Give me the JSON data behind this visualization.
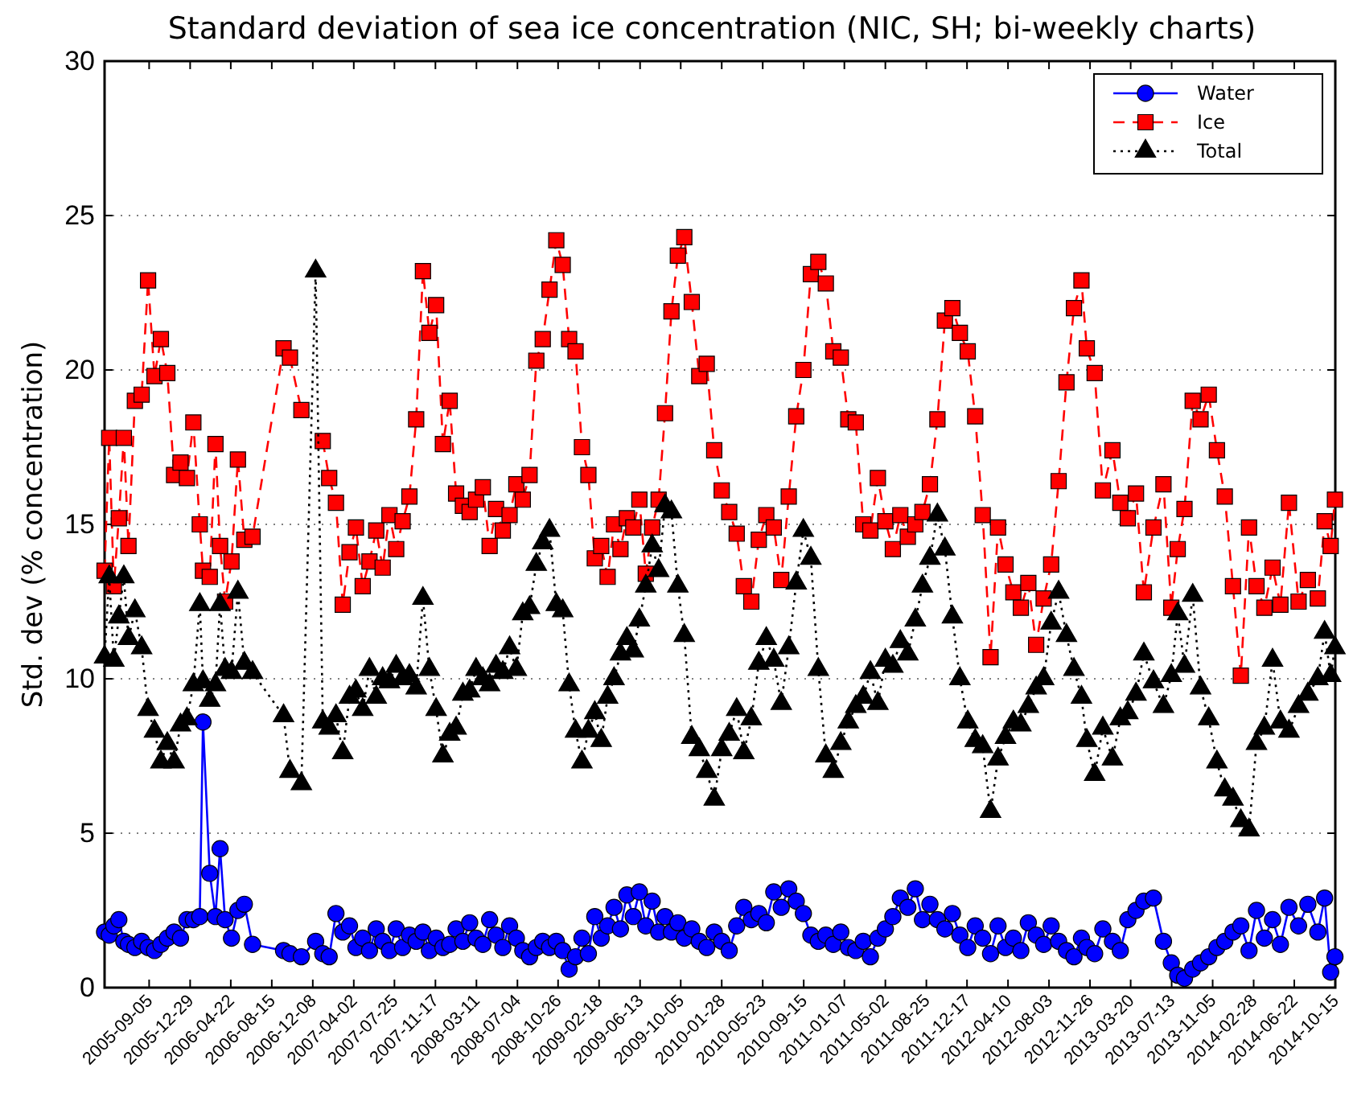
{
  "chart_data": {
    "type": "line",
    "title": "Standard deviation of sea ice concentration (NIC, SH; bi-weekly charts)",
    "ylabel": "Std. dev (% concentration)",
    "x": [
      "2005-05-03",
      "2005-05-16",
      "2005-05-29",
      "2005-06-12",
      "2005-06-26",
      "2005-07-09",
      "2005-07-27",
      "2005-08-15",
      "2005-09-02",
      "2005-09-20",
      "2005-10-08",
      "2005-10-26",
      "2005-11-14",
      "2005-12-02",
      "2005-12-20",
      "2006-01-07",
      "2006-01-25",
      "2006-02-03",
      "2006-02-22",
      "2006-03-10",
      "2006-03-23",
      "2006-04-06",
      "2006-04-24",
      "2006-05-12",
      "2006-05-30",
      "2006-06-22",
      "2006-09-17",
      "2006-10-05",
      "2006-11-06",
      "2006-12-16",
      "2007-01-05",
      "2007-01-23",
      "2007-02-11",
      "2007-03-02",
      "2007-03-21",
      "2007-04-08",
      "2007-04-27",
      "2007-05-16",
      "2007-06-04",
      "2007-06-22",
      "2007-07-11",
      "2007-07-30",
      "2007-08-17",
      "2007-09-05",
      "2007-09-24",
      "2007-10-13",
      "2007-10-31",
      "2007-11-19",
      "2007-12-08",
      "2007-12-27",
      "2008-01-14",
      "2008-02-02",
      "2008-02-21",
      "2008-03-10",
      "2008-03-29",
      "2008-04-17",
      "2008-05-05",
      "2008-05-24",
      "2008-06-12",
      "2008-07-01",
      "2008-07-19",
      "2008-08-07",
      "2008-08-26",
      "2008-09-13",
      "2008-10-02",
      "2008-10-21",
      "2008-11-08",
      "2008-11-26",
      "2008-12-14",
      "2009-01-01",
      "2009-01-19",
      "2009-02-06",
      "2009-02-24",
      "2009-03-14",
      "2009-04-01",
      "2009-04-19",
      "2009-05-07",
      "2009-05-25",
      "2009-06-11",
      "2009-06-29",
      "2009-07-17",
      "2009-08-04",
      "2009-08-22",
      "2009-09-09",
      "2009-09-27",
      "2009-10-15",
      "2009-11-05",
      "2009-11-26",
      "2009-12-17",
      "2010-01-07",
      "2010-01-28",
      "2010-02-18",
      "2010-03-11",
      "2010-03-31",
      "2010-04-21",
      "2010-05-12",
      "2010-06-02",
      "2010-06-23",
      "2010-07-14",
      "2010-08-04",
      "2010-08-25",
      "2010-09-14",
      "2010-10-05",
      "2010-10-26",
      "2010-11-16",
      "2010-12-07",
      "2010-12-28",
      "2011-01-18",
      "2011-02-08",
      "2011-03-01",
      "2011-03-21",
      "2011-04-11",
      "2011-05-02",
      "2011-05-23",
      "2011-06-13",
      "2011-07-04",
      "2011-07-25",
      "2011-08-14",
      "2011-09-04",
      "2011-09-25",
      "2011-10-16",
      "2011-11-06",
      "2011-11-27",
      "2011-12-19",
      "2012-01-09",
      "2012-01-30",
      "2012-02-21",
      "2012-03-13",
      "2012-04-03",
      "2012-04-25",
      "2012-05-16",
      "2012-06-06",
      "2012-06-28",
      "2012-07-19",
      "2012-08-09",
      "2012-08-30",
      "2012-09-21",
      "2012-10-12",
      "2012-11-02",
      "2012-11-17",
      "2012-12-09",
      "2013-01-01",
      "2013-01-28",
      "2013-02-19",
      "2013-03-12",
      "2013-04-04",
      "2013-04-26",
      "2013-05-23",
      "2013-06-20",
      "2013-07-12",
      "2013-07-30",
      "2013-08-18",
      "2013-09-10",
      "2013-10-02",
      "2013-10-25",
      "2013-11-17",
      "2013-12-09",
      "2014-01-01",
      "2014-01-23",
      "2014-02-15",
      "2014-03-08",
      "2014-03-30",
      "2014-04-22",
      "2014-05-14",
      "2014-06-07",
      "2014-07-04",
      "2014-07-30",
      "2014-08-27",
      "2014-09-15",
      "2014-10-02",
      "2014-10-14"
    ],
    "series": [
      {
        "name": "Water",
        "color": "#0000ff",
        "marker": "circle",
        "line_style": "solid",
        "values": [
          1.8,
          1.7,
          2.0,
          2.2,
          1.5,
          1.4,
          1.3,
          1.5,
          1.3,
          1.2,
          1.4,
          1.6,
          1.8,
          1.6,
          2.2,
          2.2,
          2.3,
          8.6,
          3.7,
          2.3,
          4.5,
          2.2,
          1.6,
          2.5,
          2.7,
          1.4,
          1.2,
          1.1,
          1.0,
          1.5,
          1.1,
          1.0,
          2.4,
          1.8,
          2.0,
          1.3,
          1.6,
          1.2,
          1.9,
          1.5,
          1.2,
          1.9,
          1.3,
          1.7,
          1.5,
          1.8,
          1.2,
          1.6,
          1.3,
          1.4,
          1.9,
          1.5,
          2.1,
          1.6,
          1.4,
          2.2,
          1.7,
          1.3,
          2.0,
          1.6,
          1.2,
          1.0,
          1.3,
          1.5,
          1.3,
          1.5,
          1.2,
          0.6,
          1.0,
          1.6,
          1.1,
          2.3,
          1.6,
          2.0,
          2.6,
          1.9,
          3.0,
          2.3,
          3.1,
          2.0,
          2.8,
          1.8,
          2.3,
          1.8,
          2.1,
          1.6,
          1.9,
          1.5,
          1.3,
          1.8,
          1.5,
          1.2,
          2.0,
          2.6,
          2.2,
          2.4,
          2.1,
          3.1,
          2.6,
          3.2,
          2.8,
          2.4,
          1.7,
          1.5,
          1.7,
          1.4,
          1.8,
          1.3,
          1.2,
          1.5,
          1.0,
          1.6,
          1.9,
          2.3,
          2.9,
          2.6,
          3.2,
          2.2,
          2.7,
          2.2,
          1.9,
          2.4,
          1.7,
          1.3,
          2.0,
          1.6,
          1.1,
          2.0,
          1.3,
          1.6,
          1.2,
          2.1,
          1.7,
          1.4,
          2.0,
          1.5,
          1.2,
          1.0,
          1.6,
          1.3,
          1.1,
          1.9,
          1.5,
          1.2,
          2.2,
          2.5,
          2.8,
          2.9,
          1.5,
          0.8,
          0.4,
          0.3,
          0.6,
          0.8,
          1.0,
          1.3,
          1.5,
          1.8,
          2.0,
          1.2,
          2.5,
          1.6,
          2.2,
          1.4,
          2.6,
          2.0,
          2.7,
          1.8,
          2.9,
          0.5,
          1.0
        ]
      },
      {
        "name": "Ice",
        "color": "#ff0000",
        "marker": "square",
        "line_style": "dashed",
        "values": [
          13.5,
          17.8,
          13.0,
          15.2,
          17.8,
          14.3,
          19.0,
          19.2,
          22.9,
          19.8,
          21.0,
          19.9,
          16.6,
          17.0,
          16.5,
          18.3,
          15.0,
          13.5,
          13.3,
          17.6,
          14.3,
          12.5,
          13.8,
          17.1,
          14.5,
          14.6,
          20.7,
          20.4,
          18.7,
          null,
          17.7,
          16.5,
          15.7,
          12.4,
          14.1,
          14.9,
          13.0,
          13.8,
          14.8,
          13.6,
          15.3,
          14.2,
          15.1,
          15.9,
          18.4,
          23.2,
          21.2,
          22.1,
          17.6,
          19.0,
          16.0,
          15.6,
          15.4,
          15.8,
          16.2,
          14.3,
          15.5,
          14.8,
          15.3,
          16.3,
          15.8,
          16.6,
          20.3,
          21.0,
          22.6,
          24.2,
          23.4,
          21.0,
          20.6,
          17.5,
          16.6,
          13.9,
          14.3,
          13.3,
          15.0,
          14.2,
          15.2,
          14.9,
          15.8,
          13.4,
          14.9,
          15.8,
          18.6,
          21.9,
          23.7,
          24.3,
          22.2,
          19.8,
          20.2,
          17.4,
          16.1,
          15.4,
          14.7,
          13.0,
          12.5,
          14.5,
          15.3,
          14.9,
          13.2,
          15.9,
          18.5,
          20.0,
          23.1,
          23.5,
          22.8,
          20.6,
          20.4,
          18.4,
          18.3,
          15.0,
          14.8,
          16.5,
          15.1,
          14.2,
          15.3,
          14.6,
          15.0,
          15.4,
          16.3,
          18.4,
          21.6,
          22.0,
          21.2,
          20.6,
          18.5,
          15.3,
          10.7,
          14.9,
          13.7,
          12.8,
          12.3,
          13.1,
          11.1,
          12.6,
          13.7,
          16.4,
          19.6,
          22.0,
          22.9,
          20.7,
          19.9,
          16.1,
          17.4,
          15.7,
          15.2,
          16.0,
          12.8,
          14.9,
          16.3,
          12.3,
          14.2,
          15.5,
          19.0,
          18.4,
          19.2,
          17.4,
          15.9,
          13.0,
          10.1,
          14.9,
          13.0,
          12.3,
          13.6,
          12.4,
          15.7,
          12.5,
          13.2,
          12.6,
          15.1,
          14.3,
          15.8
        ]
      },
      {
        "name": "Total",
        "color": "#000000",
        "marker": "triangle",
        "line_style": "dotted",
        "values": [
          10.7,
          13.3,
          10.6,
          12.0,
          13.3,
          11.3,
          12.2,
          11.0,
          9.0,
          8.3,
          7.3,
          7.9,
          7.3,
          8.5,
          8.7,
          9.8,
          12.4,
          9.9,
          9.3,
          9.8,
          12.4,
          10.3,
          10.2,
          12.8,
          10.5,
          10.2,
          8.8,
          7.0,
          6.6,
          23.2,
          8.6,
          8.4,
          8.8,
          7.6,
          9.4,
          9.6,
          9.0,
          10.3,
          9.4,
          10.0,
          9.9,
          10.4,
          10.0,
          10.1,
          9.7,
          12.6,
          10.3,
          9.0,
          7.5,
          8.2,
          8.4,
          9.5,
          9.6,
          10.3,
          10.0,
          9.8,
          10.4,
          10.2,
          11.0,
          10.3,
          12.1,
          12.3,
          13.7,
          14.4,
          14.8,
          12.4,
          12.2,
          9.8,
          8.3,
          7.3,
          8.3,
          8.9,
          8.0,
          9.4,
          10.0,
          10.8,
          11.3,
          10.9,
          11.9,
          13.0,
          14.3,
          13.5,
          15.6,
          15.4,
          13.0,
          11.4,
          8.1,
          7.7,
          7.0,
          6.1,
          7.7,
          8.2,
          9.0,
          7.6,
          8.7,
          10.5,
          11.3,
          10.6,
          9.2,
          11.0,
          13.1,
          14.8,
          13.9,
          10.3,
          7.5,
          7.0,
          7.9,
          8.6,
          9.1,
          9.4,
          10.2,
          9.2,
          10.6,
          10.4,
          11.2,
          10.8,
          11.9,
          13.0,
          13.9,
          15.3,
          14.2,
          12.0,
          10.0,
          8.6,
          8.0,
          7.8,
          5.7,
          7.4,
          8.1,
          8.6,
          8.5,
          9.1,
          9.7,
          10.0,
          11.8,
          12.8,
          11.4,
          10.3,
          9.4,
          8.0,
          6.9,
          8.4,
          7.4,
          8.7,
          8.9,
          9.5,
          10.8,
          9.9,
          9.1,
          10.1,
          12.1,
          10.4,
          12.7,
          9.7,
          8.7,
          7.3,
          6.4,
          6.1,
          5.4,
          5.1,
          7.9,
          8.4,
          10.6,
          8.6,
          8.3,
          9.1,
          9.5,
          10.0,
          11.5,
          10.1,
          11.0
        ]
      }
    ],
    "xlim": [
      "2005-05-03",
      "2014-10-15"
    ],
    "xticks": [
      "2005-09-05",
      "2005-12-29",
      "2006-04-22",
      "2006-08-15",
      "2006-12-08",
      "2007-04-02",
      "2007-07-25",
      "2007-11-17",
      "2008-03-11",
      "2008-07-04",
      "2008-10-26",
      "2009-02-18",
      "2009-06-13",
      "2009-10-05",
      "2010-01-28",
      "2010-05-23",
      "2010-09-15",
      "2011-01-07",
      "2011-05-02",
      "2011-08-25",
      "2011-12-17",
      "2012-04-10",
      "2012-08-03",
      "2012-11-26",
      "2013-03-20",
      "2013-07-13",
      "2013-11-05",
      "2014-02-28",
      "2014-06-22",
      "2014-10-15"
    ],
    "ylim": [
      0,
      30
    ],
    "yticks": [
      0,
      5,
      10,
      15,
      20,
      25,
      30
    ],
    "grid": "y",
    "legend": "top right"
  }
}
